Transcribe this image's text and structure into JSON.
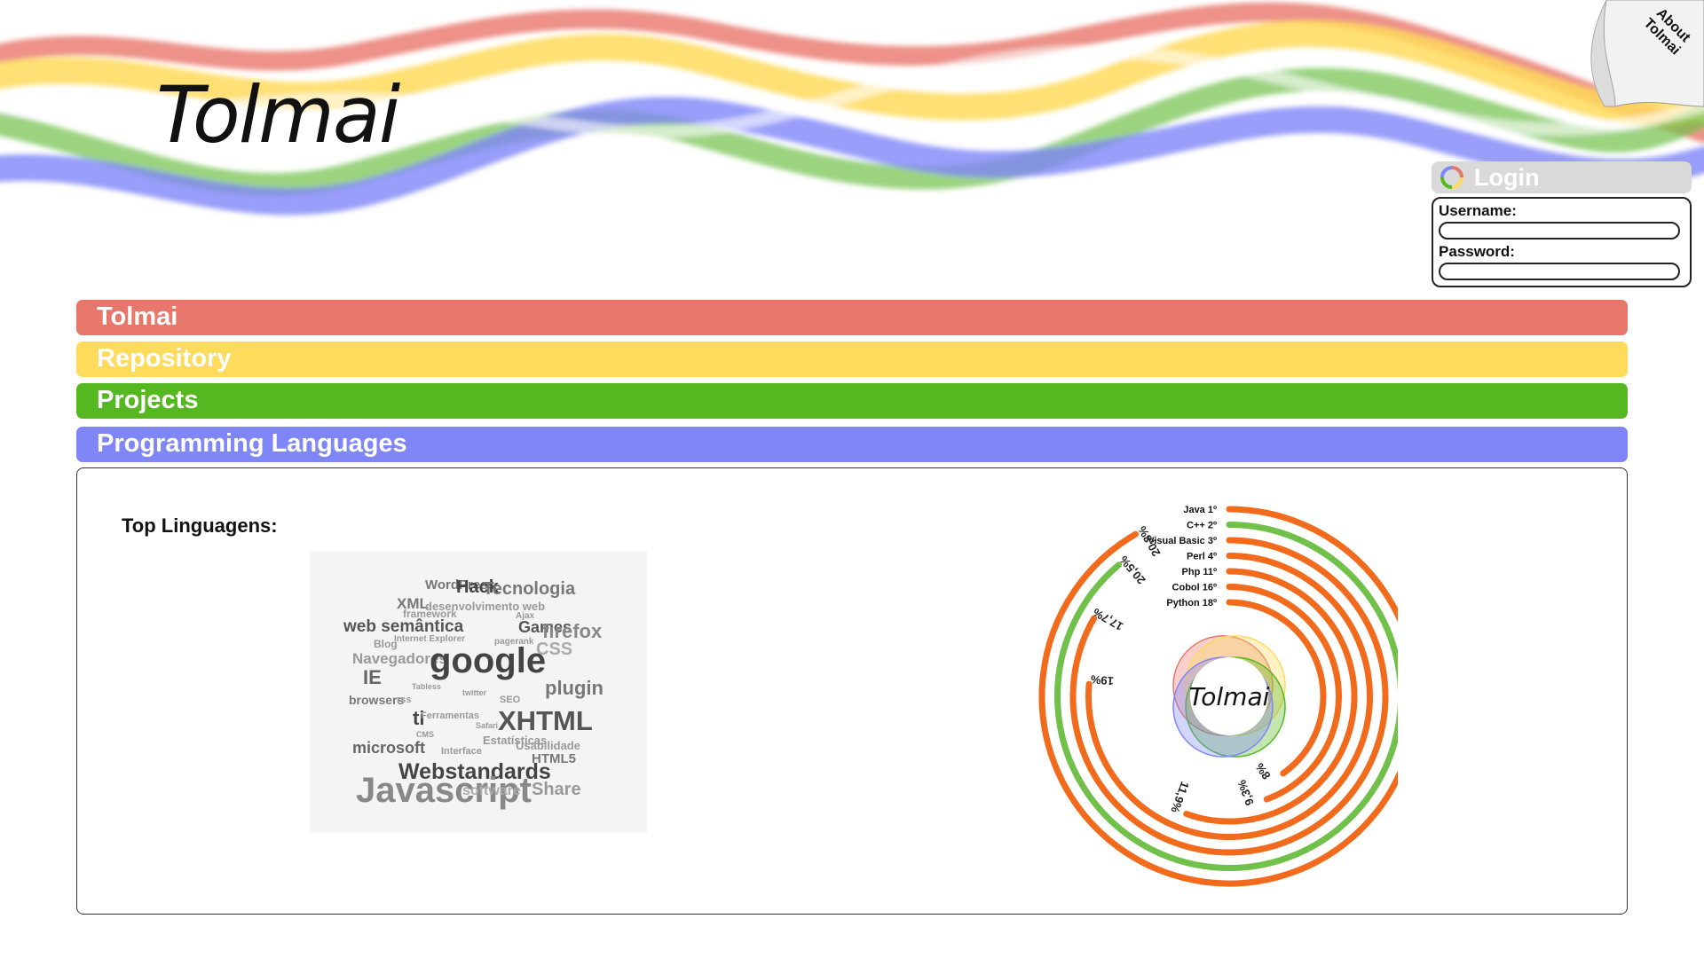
{
  "brand": {
    "logo_text": "Tolmai",
    "about_label": "About Tolmai",
    "colors": {
      "red": "#e8776b",
      "yellow": "#ffdb5c",
      "green": "#55b820",
      "blue": "#7e86f8"
    }
  },
  "login": {
    "title": "Login",
    "icon": "tolmai-ring-icon",
    "username_label": "Username:",
    "password_label": "Password:",
    "username_value": "",
    "password_value": ""
  },
  "nav": {
    "items": [
      {
        "label": "Tolmai",
        "color": "#e8776b"
      },
      {
        "label": "Repository",
        "color": "#ffdb5c"
      },
      {
        "label": "Projects",
        "color": "#55b820"
      },
      {
        "label": "Programming Languages",
        "color": "#7e86f8"
      }
    ]
  },
  "content": {
    "title": "Top Linguagens:",
    "tag_cloud": [
      "WordPress",
      "Hack",
      "Tecnologia",
      "XML",
      "desenvolvimento web",
      "framework",
      "Ajax",
      "web semântica",
      "Games",
      "firefox",
      "Blog",
      "Internet Explorer",
      "pagerank",
      "CSS",
      "Navegadores",
      "google",
      "IE",
      "Tabless",
      "twitter",
      "plugin",
      "browsers",
      "rss",
      "SEO",
      "ti",
      "Ferramentas",
      "Safari",
      "XHTML",
      "CMS",
      "Estatísticas",
      "microsoft",
      "HTML5",
      "Interface",
      "Usabilidade",
      "Webstandards",
      "Javascript",
      "software",
      "Share"
    ]
  },
  "chart_data": {
    "type": "radial-bar",
    "center_label": "Tolmai",
    "series": [
      {
        "name": "Java",
        "rank": "1º",
        "value_label": "20,8%",
        "color": "#f26b1d"
      },
      {
        "name": "C++",
        "rank": "2º",
        "value_label": "20,5%",
        "color": "#70c04a"
      },
      {
        "name": "Visual Basic",
        "rank": "3º",
        "value_label": "17,7%",
        "color": "#f26b1d"
      },
      {
        "name": "Perl",
        "rank": "4º",
        "value_label": "19%",
        "color": "#f26b1d"
      },
      {
        "name": "Php",
        "rank": "11º",
        "value_label": "11,9%",
        "color": "#f26b1d"
      },
      {
        "name": "Cobol",
        "rank": "16º",
        "value_label": "9,3%",
        "color": "#f26b1d"
      },
      {
        "name": "Python",
        "rank": "18º",
        "value_label": "8%",
        "color": "#f26b1d"
      }
    ]
  }
}
